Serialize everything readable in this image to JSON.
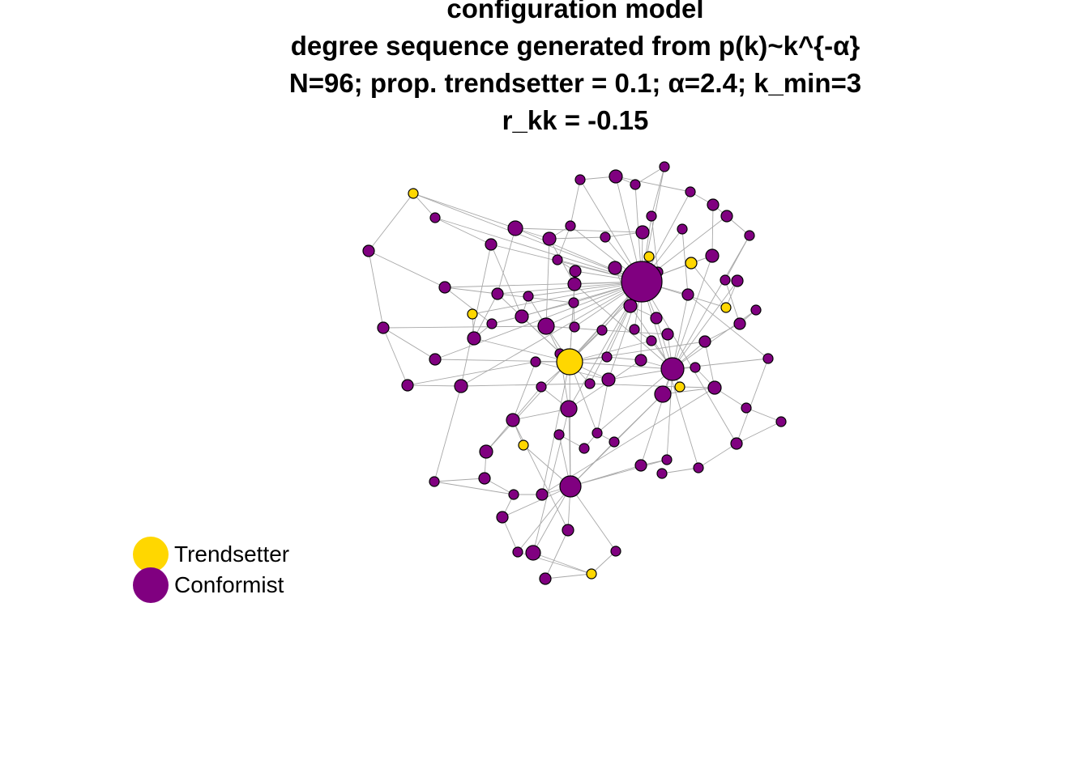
{
  "title": {
    "line1": "configuration model",
    "line2": "degree sequence generated from p(k)~k^{-α}",
    "line3": "N=96; prop. trendsetter = 0.1; α=2.4; k_min=3",
    "line4": "r_kk = -0.15"
  },
  "legend": {
    "items": [
      {
        "label": "Trendsetter",
        "color": "#FFD700"
      },
      {
        "label": "Conformist",
        "color": "#800080"
      }
    ]
  },
  "colors": {
    "trendsetter": "#FFD700",
    "conformist": "#800080",
    "edge": "#a8a8a8",
    "node_border": "#000000"
  }
}
